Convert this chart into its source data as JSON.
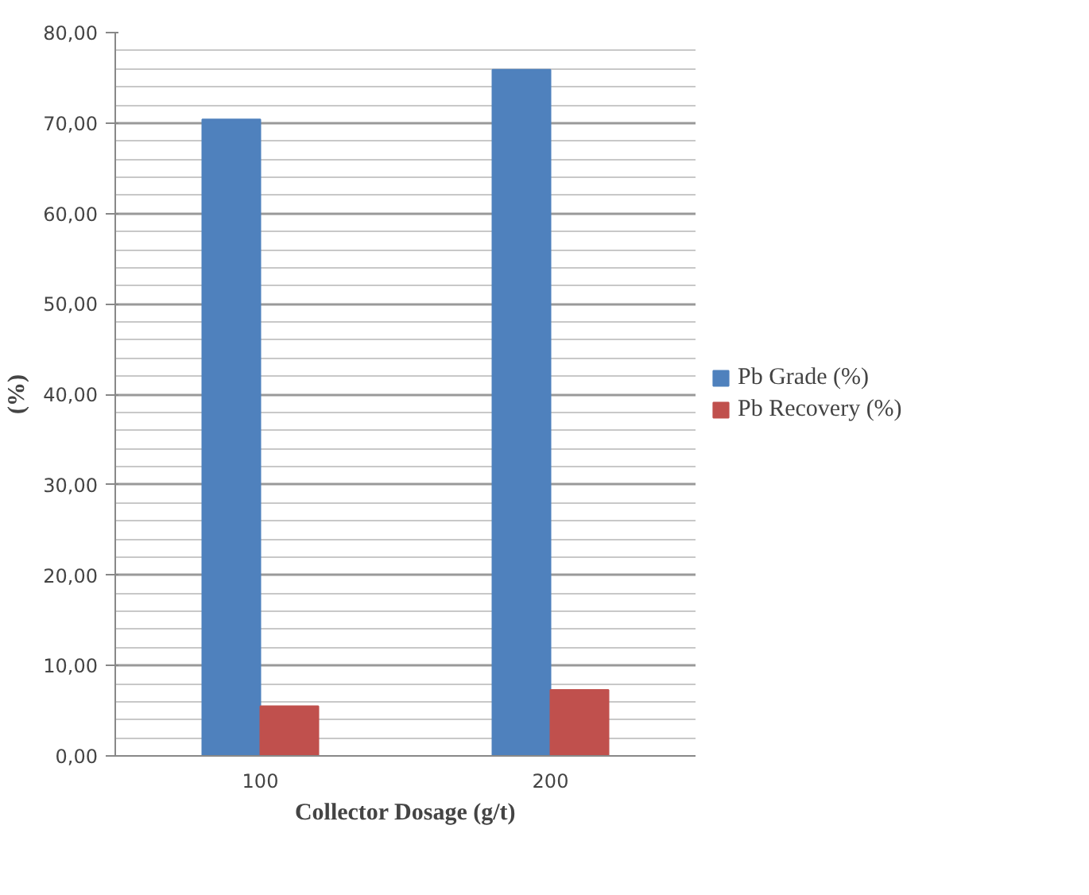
{
  "chart_data": {
    "type": "bar",
    "xlabel": "Collector Dosage (g/t)",
    "ylabel": "(%)",
    "categories": [
      "100",
      "200"
    ],
    "series": [
      {
        "name": "Pb Grade (%)",
        "color": "#4f81bd",
        "values": [
          70.4,
          75.9
        ]
      },
      {
        "name": "Pb Recovery (%)",
        "color": "#c0504d",
        "values": [
          5.5,
          7.3
        ]
      }
    ],
    "ylim": [
      0,
      80
    ],
    "yticks": [
      {
        "value": 0,
        "label": "0,00"
      },
      {
        "value": 2,
        "label": null
      },
      {
        "value": 4,
        "label": null
      },
      {
        "value": 6,
        "label": null
      },
      {
        "value": 8,
        "label": null
      },
      {
        "value": 10,
        "label": "10,00"
      },
      {
        "value": 12,
        "label": null
      },
      {
        "value": 14,
        "label": null
      },
      {
        "value": 16,
        "label": null
      },
      {
        "value": 18,
        "label": null
      },
      {
        "value": 20,
        "label": "20,00"
      },
      {
        "value": 22,
        "label": null
      },
      {
        "value": 24,
        "label": null
      },
      {
        "value": 26,
        "label": null
      },
      {
        "value": 28,
        "label": null
      },
      {
        "value": 30,
        "label": "30,00"
      },
      {
        "value": 32,
        "label": null
      },
      {
        "value": 34,
        "label": null
      },
      {
        "value": 36,
        "label": null
      },
      {
        "value": 38,
        "label": null
      },
      {
        "value": 40,
        "label": "40,00"
      },
      {
        "value": 42,
        "label": null
      },
      {
        "value": 44,
        "label": null
      },
      {
        "value": 46,
        "label": null
      },
      {
        "value": 48,
        "label": null
      },
      {
        "value": 50,
        "label": "50,00"
      },
      {
        "value": 52,
        "label": null
      },
      {
        "value": 54,
        "label": null
      },
      {
        "value": 56,
        "label": null
      },
      {
        "value": 58,
        "label": null
      },
      {
        "value": 60,
        "label": "60,00"
      },
      {
        "value": 62,
        "label": null
      },
      {
        "value": 64,
        "label": null
      },
      {
        "value": 66,
        "label": null
      },
      {
        "value": 68,
        "label": null
      },
      {
        "value": 70,
        "label": "70,00"
      },
      {
        "value": 72,
        "label": null
      },
      {
        "value": 74,
        "label": null
      },
      {
        "value": 76,
        "label": null
      },
      {
        "value": 78,
        "label": null
      },
      {
        "value": 80,
        "label": "80,00"
      }
    ],
    "grid": "y",
    "legend": "right"
  }
}
